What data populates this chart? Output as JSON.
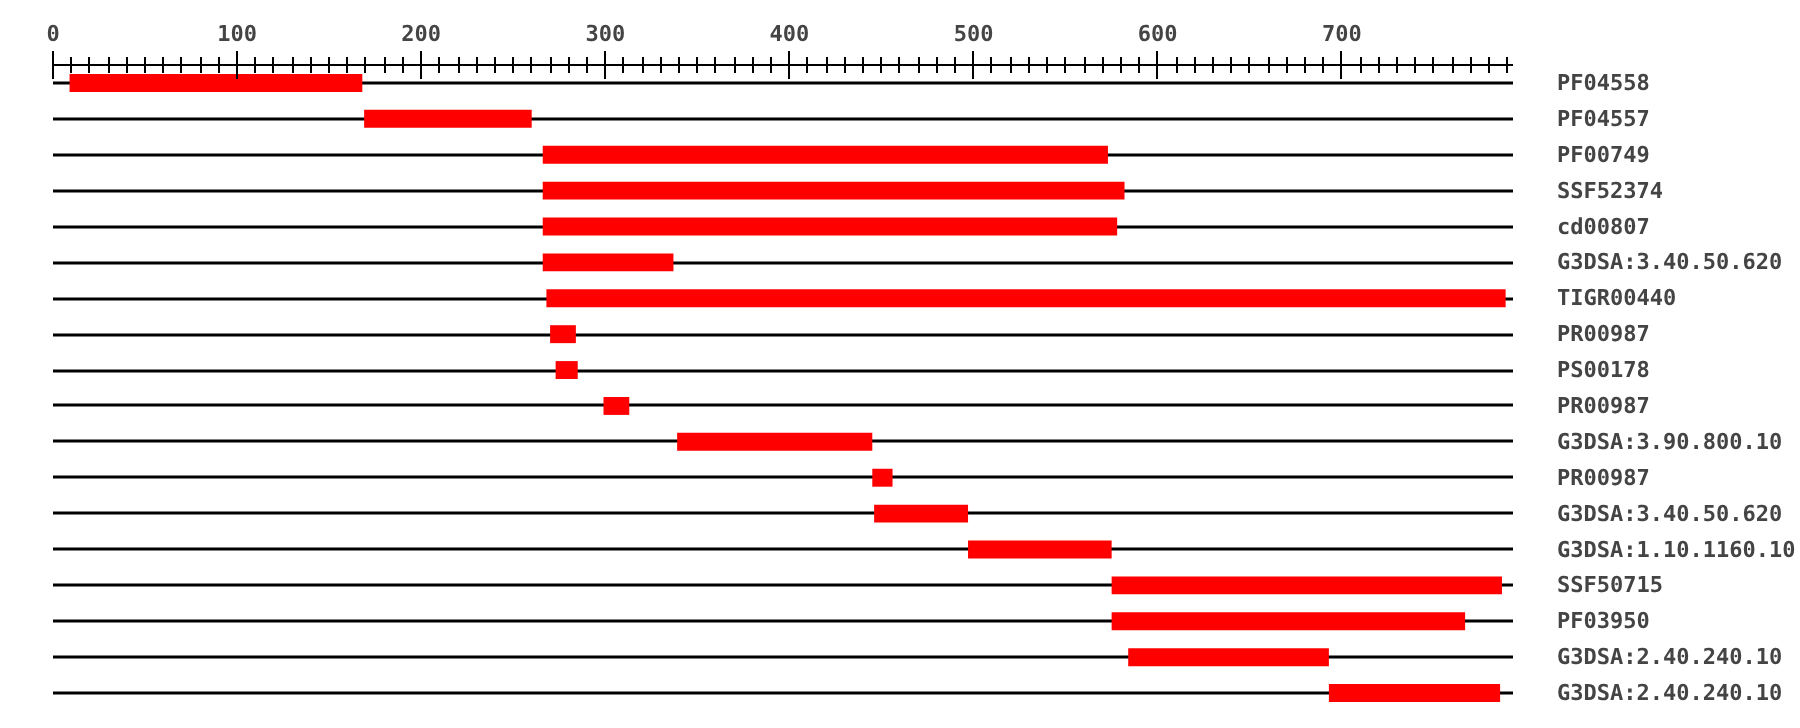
{
  "chart_data": {
    "type": "bar",
    "orientation": "horizontal",
    "grid": "y",
    "color": "#ff0000",
    "categories": [
      "PF04558",
      "PF04557",
      "PF00749",
      "SSF52374",
      "cd00807",
      "G3DSA:3.40.50.620",
      "TIGR00440",
      "PR00987",
      "PS00178",
      "PR00987",
      "G3DSA:3.90.800.10",
      "PR00987",
      "G3DSA:3.40.50.620",
      "G3DSA:1.10.1160.10",
      "SSF50715",
      "PF03950",
      "G3DSA:2.40.240.10",
      "G3DSA:2.40.240.10"
    ],
    "base": [
      9,
      169,
      266,
      266,
      266,
      266,
      268,
      270,
      273,
      299,
      339,
      445,
      446,
      497,
      575,
      575,
      584,
      693
    ],
    "values": [
      159,
      91,
      307,
      316,
      312,
      71,
      521,
      14,
      12,
      14,
      106,
      11,
      51,
      78,
      212,
      192,
      109,
      93
    ],
    "xlim": [
      0,
      793
    ],
    "xticks": [
      0,
      {
        "value": 10,
        "label": null
      },
      {
        "value": 20,
        "label": null
      },
      {
        "value": 30,
        "label": null
      },
      {
        "value": 40,
        "label": null
      },
      {
        "value": 50,
        "label": null
      },
      {
        "value": 60,
        "label": null
      },
      {
        "value": 70,
        "label": null
      },
      {
        "value": 80,
        "label": null
      },
      {
        "value": 90,
        "label": null
      },
      100,
      {
        "value": 110,
        "label": null
      },
      {
        "value": 120,
        "label": null
      },
      {
        "value": 130,
        "label": null
      },
      {
        "value": 140,
        "label": null
      },
      {
        "value": 150,
        "label": null
      },
      {
        "value": 160,
        "label": null
      },
      {
        "value": 170,
        "label": null
      },
      {
        "value": 180,
        "label": null
      },
      {
        "value": 190,
        "label": null
      },
      200,
      {
        "value": 210,
        "label": null
      },
      {
        "value": 220,
        "label": null
      },
      {
        "value": 230,
        "label": null
      },
      {
        "value": 240,
        "label": null
      },
      {
        "value": 250,
        "label": null
      },
      {
        "value": 260,
        "label": null
      },
      {
        "value": 270,
        "label": null
      },
      {
        "value": 280,
        "label": null
      },
      {
        "value": 290,
        "label": null
      },
      300,
      {
        "value": 310,
        "label": null
      },
      {
        "value": 320,
        "label": null
      },
      {
        "value": 330,
        "label": null
      },
      {
        "value": 340,
        "label": null
      },
      {
        "value": 350,
        "label": null
      },
      {
        "value": 360,
        "label": null
      },
      {
        "value": 370,
        "label": null
      },
      {
        "value": 380,
        "label": null
      },
      {
        "value": 390,
        "label": null
      },
      400,
      {
        "value": 410,
        "label": null
      },
      {
        "value": 420,
        "label": null
      },
      {
        "value": 430,
        "label": null
      },
      {
        "value": 440,
        "label": null
      },
      {
        "value": 450,
        "label": null
      },
      {
        "value": 460,
        "label": null
      },
      {
        "value": 470,
        "label": null
      },
      {
        "value": 480,
        "label": null
      },
      {
        "value": 490,
        "label": null
      },
      500,
      {
        "value": 510,
        "label": null
      },
      {
        "value": 520,
        "label": null
      },
      {
        "value": 530,
        "label": null
      },
      {
        "value": 540,
        "label": null
      },
      {
        "value": 550,
        "label": null
      },
      {
        "value": 560,
        "label": null
      },
      {
        "value": 570,
        "label": null
      },
      {
        "value": 580,
        "label": null
      },
      {
        "value": 590,
        "label": null
      },
      600,
      {
        "value": 610,
        "label": null
      },
      {
        "value": 620,
        "label": null
      },
      {
        "value": 630,
        "label": null
      },
      {
        "value": 640,
        "label": null
      },
      {
        "value": 650,
        "label": null
      },
      {
        "value": 660,
        "label": null
      },
      {
        "value": 670,
        "label": null
      },
      {
        "value": 680,
        "label": null
      },
      {
        "value": 690,
        "label": null
      },
      700,
      {
        "value": 710,
        "label": null
      },
      {
        "value": 720,
        "label": null
      },
      {
        "value": 730,
        "label": null
      },
      {
        "value": 740,
        "label": null
      },
      {
        "value": 750,
        "label": null
      },
      {
        "value": 760,
        "label": null
      },
      {
        "value": 770,
        "label": null
      },
      {
        "value": 780,
        "label": null
      },
      {
        "value": 790,
        "label": null
      }
    ]
  }
}
